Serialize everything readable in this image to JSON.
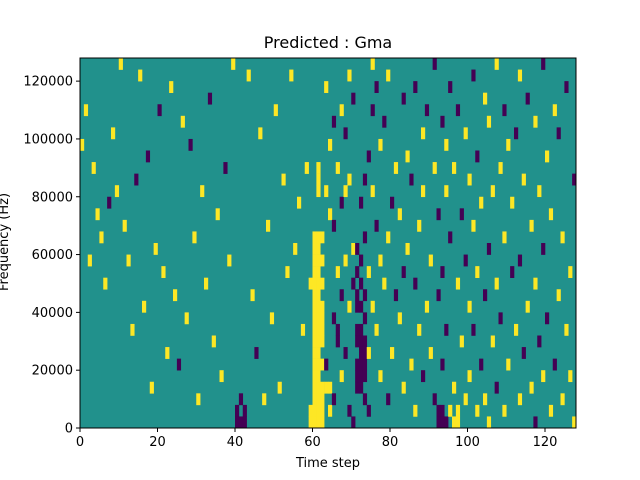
{
  "chart_data": {
    "type": "heatmap",
    "title": "Predicted : Gma",
    "xlabel": "Time step",
    "ylabel": "Frequency (Hz)",
    "xlim": [
      0,
      128
    ],
    "ylim": [
      0,
      128000
    ],
    "x_ticks": [
      0,
      20,
      40,
      60,
      80,
      100,
      120
    ],
    "y_ticks": [
      0,
      20000,
      40000,
      60000,
      80000,
      100000,
      120000
    ],
    "x_tick_labels": [
      "0",
      "20",
      "40",
      "60",
      "80",
      "100",
      "120"
    ],
    "y_tick_labels": [
      "0",
      "20000",
      "40000",
      "60000",
      "80000",
      "100000",
      "120000"
    ],
    "grid": false,
    "colormap": "viridis",
    "colors": {
      "low": "#440154",
      "mid": "#21918c",
      "high": "#fde725"
    },
    "value_levels": [
      -1,
      0,
      1
    ],
    "background_value": 0,
    "n_time_steps": 128,
    "n_freq_bins": 32,
    "freq_bin_width": 4000,
    "cells_note": "each entry: [time_step, freq_bin_index, value]",
    "cells": [
      [
        0,
        24,
        1
      ],
      [
        1,
        27,
        1
      ],
      [
        2,
        14,
        1
      ],
      [
        3,
        22,
        1
      ],
      [
        4,
        18,
        1
      ],
      [
        5,
        16,
        1
      ],
      [
        6,
        12,
        1
      ],
      [
        7,
        19,
        -1
      ],
      [
        8,
        25,
        1
      ],
      [
        9,
        20,
        1
      ],
      [
        10,
        31,
        1
      ],
      [
        11,
        17,
        1
      ],
      [
        12,
        14,
        1
      ],
      [
        13,
        8,
        1
      ],
      [
        14,
        21,
        -1
      ],
      [
        15,
        30,
        1
      ],
      [
        16,
        10,
        1
      ],
      [
        17,
        23,
        -1
      ],
      [
        18,
        3,
        1
      ],
      [
        19,
        15,
        1
      ],
      [
        20,
        27,
        -1
      ],
      [
        21,
        13,
        1
      ],
      [
        22,
        6,
        1
      ],
      [
        23,
        29,
        1
      ],
      [
        24,
        11,
        1
      ],
      [
        25,
        5,
        -1
      ],
      [
        26,
        26,
        1
      ],
      [
        27,
        9,
        1
      ],
      [
        28,
        24,
        -1
      ],
      [
        29,
        16,
        1
      ],
      [
        30,
        2,
        1
      ],
      [
        31,
        20,
        1
      ],
      [
        32,
        12,
        1
      ],
      [
        33,
        28,
        -1
      ],
      [
        34,
        7,
        1
      ],
      [
        35,
        18,
        1
      ],
      [
        36,
        4,
        1
      ],
      [
        37,
        22,
        -1
      ],
      [
        38,
        14,
        1
      ],
      [
        39,
        31,
        1
      ],
      [
        40,
        1,
        -1
      ],
      [
        40,
        0,
        -1
      ],
      [
        41,
        2,
        -1
      ],
      [
        41,
        0,
        -1
      ],
      [
        42,
        1,
        -1
      ],
      [
        42,
        0,
        -1
      ],
      [
        43,
        30,
        1
      ],
      [
        44,
        11,
        1
      ],
      [
        45,
        6,
        -1
      ],
      [
        46,
        25,
        1
      ],
      [
        47,
        2,
        1
      ],
      [
        48,
        17,
        1
      ],
      [
        49,
        9,
        1
      ],
      [
        50,
        27,
        1
      ],
      [
        51,
        3,
        1
      ],
      [
        52,
        21,
        1
      ],
      [
        53,
        13,
        1
      ],
      [
        54,
        30,
        1
      ],
      [
        55,
        15,
        1
      ],
      [
        56,
        19,
        1
      ],
      [
        57,
        8,
        1
      ],
      [
        58,
        22,
        1
      ],
      [
        59,
        12,
        1
      ],
      [
        59,
        0,
        1
      ],
      [
        59,
        1,
        1
      ],
      [
        60,
        0,
        1
      ],
      [
        60,
        1,
        1
      ],
      [
        60,
        2,
        1
      ],
      [
        60,
        3,
        1
      ],
      [
        60,
        4,
        1
      ],
      [
        60,
        5,
        1
      ],
      [
        60,
        6,
        1
      ],
      [
        60,
        7,
        1
      ],
      [
        60,
        8,
        1
      ],
      [
        60,
        9,
        1
      ],
      [
        60,
        10,
        1
      ],
      [
        60,
        11,
        1
      ],
      [
        60,
        12,
        1
      ],
      [
        60,
        13,
        1
      ],
      [
        60,
        14,
        1
      ],
      [
        60,
        15,
        1
      ],
      [
        60,
        16,
        1
      ],
      [
        61,
        0,
        1
      ],
      [
        61,
        1,
        1
      ],
      [
        61,
        2,
        1
      ],
      [
        61,
        3,
        1
      ],
      [
        61,
        4,
        1
      ],
      [
        61,
        5,
        1
      ],
      [
        61,
        6,
        1
      ],
      [
        61,
        7,
        1
      ],
      [
        61,
        8,
        1
      ],
      [
        61,
        9,
        1
      ],
      [
        61,
        10,
        1
      ],
      [
        61,
        11,
        1
      ],
      [
        61,
        12,
        1
      ],
      [
        61,
        13,
        1
      ],
      [
        61,
        14,
        1
      ],
      [
        61,
        15,
        1
      ],
      [
        61,
        16,
        1
      ],
      [
        61,
        20,
        1
      ],
      [
        61,
        21,
        1
      ],
      [
        61,
        22,
        1
      ],
      [
        62,
        0,
        1
      ],
      [
        62,
        1,
        1
      ],
      [
        62,
        2,
        1
      ],
      [
        62,
        3,
        1
      ],
      [
        62,
        5,
        1
      ],
      [
        62,
        7,
        1
      ],
      [
        62,
        8,
        1
      ],
      [
        62,
        9,
        1
      ],
      [
        62,
        10,
        1
      ],
      [
        62,
        12,
        1
      ],
      [
        62,
        14,
        1
      ],
      [
        62,
        16,
        1
      ],
      [
        63,
        3,
        1
      ],
      [
        63,
        5,
        -1
      ],
      [
        63,
        20,
        1
      ],
      [
        63,
        29,
        1
      ],
      [
        64,
        1,
        1
      ],
      [
        64,
        3,
        1
      ],
      [
        64,
        18,
        1
      ],
      [
        64,
        24,
        1
      ],
      [
        65,
        2,
        -1
      ],
      [
        65,
        9,
        -1
      ],
      [
        65,
        17,
        -1
      ],
      [
        65,
        26,
        -1
      ],
      [
        66,
        7,
        -1
      ],
      [
        66,
        8,
        -1
      ],
      [
        66,
        13,
        1
      ],
      [
        66,
        22,
        1
      ],
      [
        67,
        4,
        1
      ],
      [
        67,
        11,
        -1
      ],
      [
        67,
        19,
        -1
      ],
      [
        67,
        27,
        1
      ],
      [
        68,
        6,
        -1
      ],
      [
        68,
        14,
        1
      ],
      [
        68,
        20,
        1
      ],
      [
        68,
        25,
        -1
      ],
      [
        69,
        1,
        -1
      ],
      [
        69,
        10,
        1
      ],
      [
        69,
        21,
        1
      ],
      [
        69,
        30,
        1
      ],
      [
        70,
        0,
        -1
      ],
      [
        70,
        12,
        -1
      ],
      [
        70,
        15,
        1
      ],
      [
        70,
        28,
        -1
      ],
      [
        71,
        3,
        -1
      ],
      [
        71,
        4,
        -1
      ],
      [
        71,
        5,
        -1
      ],
      [
        71,
        7,
        -1
      ],
      [
        71,
        8,
        -1
      ],
      [
        71,
        10,
        -1
      ],
      [
        71,
        11,
        -1
      ],
      [
        71,
        13,
        -1
      ],
      [
        71,
        15,
        -1
      ],
      [
        72,
        3,
        -1
      ],
      [
        72,
        4,
        -1
      ],
      [
        72,
        5,
        -1
      ],
      [
        72,
        6,
        -1
      ],
      [
        72,
        7,
        -1
      ],
      [
        72,
        8,
        -1
      ],
      [
        72,
        10,
        -1
      ],
      [
        72,
        12,
        -1
      ],
      [
        72,
        14,
        -1
      ],
      [
        72,
        19,
        -1
      ],
      [
        73,
        2,
        -1
      ],
      [
        73,
        4,
        -1
      ],
      [
        73,
        5,
        -1
      ],
      [
        73,
        6,
        -1
      ],
      [
        73,
        7,
        -1
      ],
      [
        73,
        9,
        -1
      ],
      [
        73,
        11,
        -1
      ],
      [
        73,
        16,
        -1
      ],
      [
        73,
        21,
        -1
      ],
      [
        74,
        1,
        -1
      ],
      [
        74,
        6,
        1
      ],
      [
        74,
        13,
        1
      ],
      [
        74,
        23,
        -1
      ],
      [
        75,
        10,
        1
      ],
      [
        75,
        20,
        1
      ],
      [
        75,
        27,
        -1
      ],
      [
        75,
        31,
        1
      ],
      [
        76,
        8,
        1
      ],
      [
        76,
        17,
        -1
      ],
      [
        76,
        29,
        -1
      ],
      [
        77,
        4,
        1
      ],
      [
        77,
        14,
        1
      ],
      [
        77,
        24,
        1
      ],
      [
        78,
        12,
        1
      ],
      [
        78,
        26,
        -1
      ],
      [
        79,
        2,
        -1
      ],
      [
        79,
        16,
        1
      ],
      [
        79,
        30,
        1
      ],
      [
        80,
        6,
        1
      ],
      [
        80,
        19,
        -1
      ],
      [
        81,
        11,
        -1
      ],
      [
        81,
        22,
        1
      ],
      [
        82,
        9,
        1
      ],
      [
        82,
        18,
        1
      ],
      [
        83,
        3,
        1
      ],
      [
        83,
        13,
        -1
      ],
      [
        83,
        28,
        -1
      ],
      [
        84,
        15,
        1
      ],
      [
        84,
        23,
        1
      ],
      [
        85,
        5,
        1
      ],
      [
        85,
        21,
        -1
      ],
      [
        86,
        1,
        1
      ],
      [
        86,
        12,
        -1
      ],
      [
        86,
        29,
        -1
      ],
      [
        87,
        8,
        1
      ],
      [
        87,
        17,
        1
      ],
      [
        88,
        4,
        -1
      ],
      [
        88,
        20,
        1
      ],
      [
        88,
        25,
        1
      ],
      [
        89,
        10,
        1
      ],
      [
        89,
        27,
        -1
      ],
      [
        90,
        6,
        1
      ],
      [
        90,
        14,
        1
      ],
      [
        91,
        2,
        -1
      ],
      [
        91,
        22,
        1
      ],
      [
        91,
        31,
        -1
      ],
      [
        92,
        0,
        -1
      ],
      [
        92,
        1,
        -1
      ],
      [
        92,
        11,
        -1
      ],
      [
        92,
        18,
        -1
      ],
      [
        93,
        0,
        -1
      ],
      [
        93,
        1,
        -1
      ],
      [
        93,
        5,
        -1
      ],
      [
        93,
        13,
        -1
      ],
      [
        93,
        26,
        -1
      ],
      [
        94,
        0,
        -1
      ],
      [
        94,
        8,
        -1
      ],
      [
        94,
        20,
        1
      ],
      [
        94,
        24,
        1
      ],
      [
        95,
        1,
        1
      ],
      [
        95,
        16,
        -1
      ],
      [
        95,
        29,
        -1
      ],
      [
        96,
        0,
        1
      ],
      [
        96,
        3,
        1
      ],
      [
        96,
        22,
        1
      ],
      [
        97,
        0,
        1
      ],
      [
        97,
        1,
        1
      ],
      [
        97,
        12,
        1
      ],
      [
        97,
        27,
        -1
      ],
      [
        98,
        7,
        1
      ],
      [
        98,
        18,
        -1
      ],
      [
        99,
        2,
        1
      ],
      [
        99,
        14,
        -1
      ],
      [
        99,
        25,
        1
      ],
      [
        100,
        4,
        1
      ],
      [
        100,
        10,
        1
      ],
      [
        100,
        21,
        1
      ],
      [
        101,
        8,
        -1
      ],
      [
        101,
        17,
        1
      ],
      [
        101,
        30,
        -1
      ],
      [
        102,
        1,
        1
      ],
      [
        102,
        13,
        1
      ],
      [
        102,
        23,
        -1
      ],
      [
        103,
        5,
        -1
      ],
      [
        103,
        19,
        1
      ],
      [
        104,
        2,
        1
      ],
      [
        104,
        11,
        -1
      ],
      [
        104,
        28,
        1
      ],
      [
        105,
        0,
        1
      ],
      [
        105,
        15,
        -1
      ],
      [
        105,
        26,
        1
      ],
      [
        106,
        7,
        1
      ],
      [
        106,
        20,
        1
      ],
      [
        107,
        3,
        -1
      ],
      [
        107,
        12,
        1
      ],
      [
        107,
        31,
        1
      ],
      [
        108,
        9,
        -1
      ],
      [
        108,
        22,
        1
      ],
      [
        109,
        1,
        1
      ],
      [
        109,
        16,
        1
      ],
      [
        109,
        27,
        -1
      ],
      [
        110,
        5,
        1
      ],
      [
        110,
        24,
        1
      ],
      [
        111,
        13,
        -1
      ],
      [
        111,
        19,
        1
      ],
      [
        112,
        8,
        1
      ],
      [
        112,
        25,
        -1
      ],
      [
        113,
        2,
        1
      ],
      [
        113,
        14,
        -1
      ],
      [
        113,
        30,
        1
      ],
      [
        114,
        6,
        -1
      ],
      [
        114,
        21,
        1
      ],
      [
        115,
        10,
        1
      ],
      [
        115,
        28,
        -1
      ],
      [
        116,
        3,
        1
      ],
      [
        116,
        17,
        1
      ],
      [
        117,
        0,
        -1
      ],
      [
        117,
        12,
        1
      ],
      [
        117,
        26,
        1
      ],
      [
        118,
        7,
        -1
      ],
      [
        118,
        20,
        1
      ],
      [
        119,
        4,
        1
      ],
      [
        119,
        15,
        -1
      ],
      [
        119,
        31,
        -1
      ],
      [
        120,
        9,
        -1
      ],
      [
        120,
        23,
        1
      ],
      [
        121,
        1,
        1
      ],
      [
        121,
        18,
        1
      ],
      [
        122,
        5,
        -1
      ],
      [
        122,
        27,
        1
      ],
      [
        123,
        11,
        1
      ],
      [
        123,
        25,
        -1
      ],
      [
        124,
        2,
        1
      ],
      [
        124,
        16,
        1
      ],
      [
        125,
        8,
        1
      ],
      [
        125,
        29,
        -1
      ],
      [
        126,
        4,
        1
      ],
      [
        126,
        13,
        1
      ],
      [
        127,
        0,
        1
      ],
      [
        127,
        21,
        -1
      ]
    ]
  }
}
